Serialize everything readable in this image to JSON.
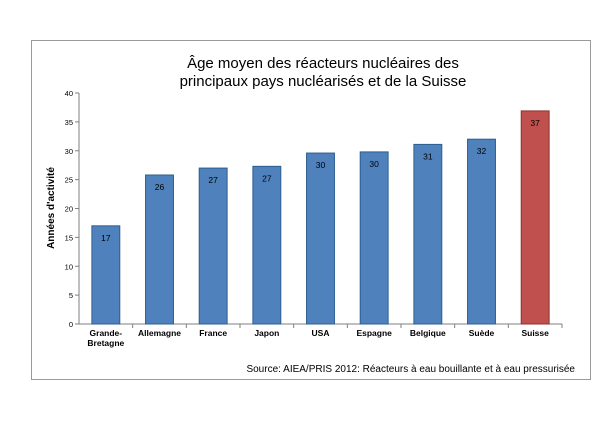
{
  "chart_data": {
    "type": "bar",
    "title_lines": [
      "Âge moyen des réacteurs nucléaires des",
      "principaux pays nucléarisés et de la Suisse"
    ],
    "ylabel": "Années d'activité",
    "xlabel": "",
    "ylim": [
      0,
      40
    ],
    "yticks": [
      0,
      5,
      10,
      15,
      20,
      25,
      30,
      35,
      40
    ],
    "categories": [
      [
        "Grande-",
        "Bretagne"
      ],
      [
        "Allemagne"
      ],
      [
        "France"
      ],
      [
        "Japon"
      ],
      [
        "USA"
      ],
      [
        "Espagne"
      ],
      [
        "Belgique"
      ],
      [
        "Suède"
      ],
      [
        "Suisse"
      ]
    ],
    "values": [
      17,
      25.8,
      27,
      27.3,
      29.6,
      29.8,
      31.1,
      32,
      36.9
    ],
    "data_labels": [
      "17",
      "26",
      "27",
      "27",
      "30",
      "30",
      "31",
      "32",
      "37"
    ],
    "colors": {
      "default": "#4f81bd",
      "default_border": "#2c5d8f",
      "highlight": "#c0504d",
      "highlight_border": "#8c3330"
    },
    "highlight_index": 8,
    "grid": false,
    "source": "Source: AIEA/PRIS 2012: Réacteurs à eau bouillante et à eau pressurisée"
  }
}
